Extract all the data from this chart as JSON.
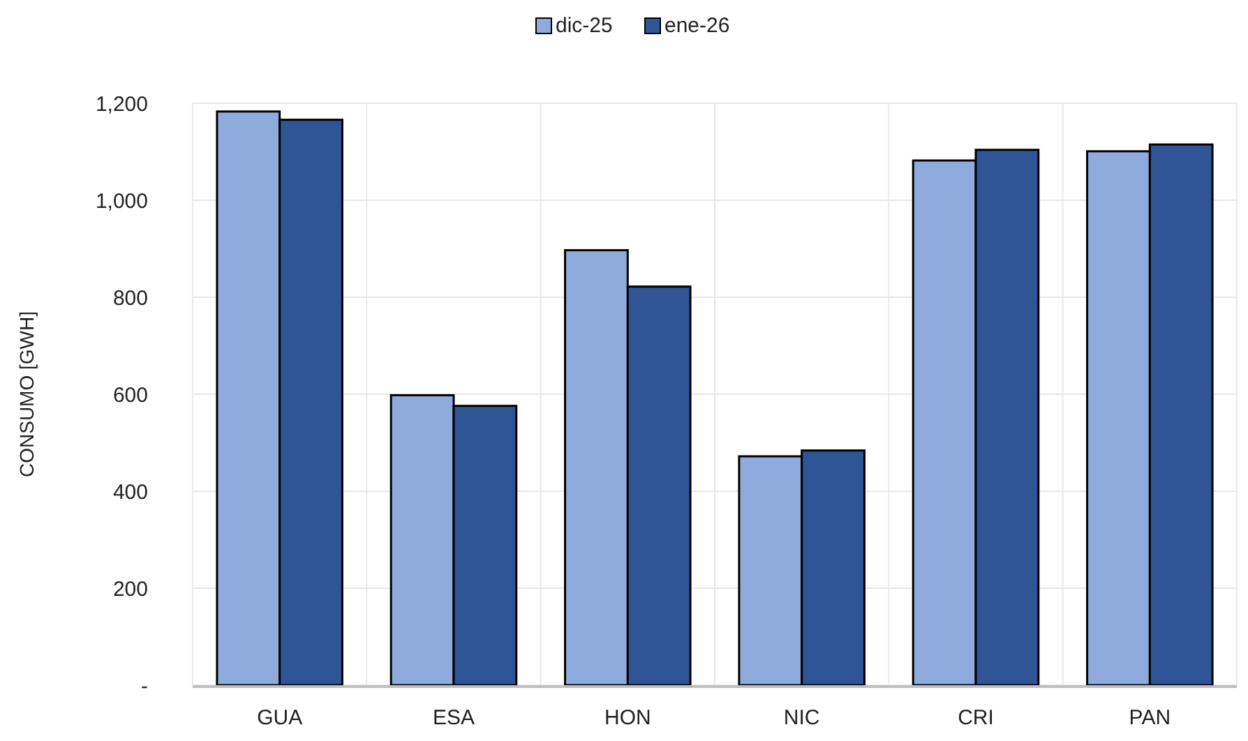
{
  "chart_data": {
    "type": "bar",
    "ylabel": "CONSUMO [GWH]",
    "categories": [
      "GUA",
      "ESA",
      "HON",
      "NIC",
      "CRI",
      "PAN"
    ],
    "series": [
      {
        "name": "dic-25",
        "color": "#8faadc",
        "values": [
          1183,
          598,
          897,
          472,
          1082,
          1101
        ]
      },
      {
        "name": "ene-26",
        "color": "#2f5597",
        "values": [
          1166,
          576,
          822,
          484,
          1104,
          1115
        ]
      }
    ],
    "ylim": [
      0,
      1200
    ],
    "yticks": [
      {
        "value": 0,
        "label": "-"
      },
      {
        "value": 200,
        "label": "200"
      },
      {
        "value": 400,
        "label": "400"
      },
      {
        "value": 600,
        "label": "600"
      },
      {
        "value": 800,
        "label": "800"
      },
      {
        "value": 1000,
        "label": "1,000"
      },
      {
        "value": 1200,
        "label": "1,200"
      }
    ],
    "grid": true,
    "legend": "top"
  }
}
